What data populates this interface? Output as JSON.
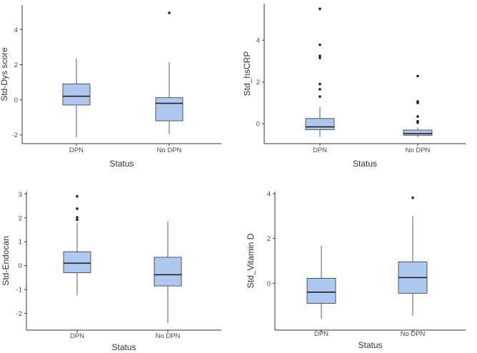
{
  "colors": {
    "box_fill": "#aec8ef",
    "box_stroke": "#333333",
    "axis": "#333333",
    "tick_text": "#4d4d4d"
  },
  "chart_data": [
    {
      "type": "box",
      "xlabel": "Status",
      "ylabel": "Std-Dys score",
      "categories": [
        "DPN",
        "No DPN"
      ],
      "ylim": [
        -2.5,
        5.4
      ],
      "yticks": [
        -2,
        0,
        2,
        4
      ],
      "ytick_labels": [
        "-2",
        "0",
        "2",
        "4"
      ],
      "boxes": [
        {
          "min": -2.15,
          "q1": -0.3,
          "median": 0.2,
          "q3": 0.9,
          "max": 2.35,
          "outliers": []
        },
        {
          "min": -1.95,
          "q1": -1.2,
          "median": -0.2,
          "q3": 0.12,
          "max": 2.15,
          "outliers": [
            4.95
          ]
        }
      ]
    },
    {
      "type": "box",
      "xlabel": "Status",
      "ylabel": "Std_hsCRP",
      "categories": [
        "DPN",
        "No DPN"
      ],
      "ylim": [
        -0.95,
        5.75
      ],
      "yticks": [
        0,
        2,
        4
      ],
      "ytick_labels": [
        "0",
        "2",
        "4"
      ],
      "boxes": [
        {
          "min": -0.62,
          "q1": -0.28,
          "median": -0.15,
          "q3": 0.25,
          "max": 0.8,
          "outliers": [
            1.3,
            1.65,
            1.9,
            3.15,
            3.25,
            3.78,
            5.5
          ]
        },
        {
          "min": -0.65,
          "q1": -0.55,
          "median": -0.47,
          "q3": -0.3,
          "max": -0.18,
          "outliers": [
            0.05,
            0.12,
            0.35,
            1.0,
            1.07,
            2.28
          ]
        }
      ]
    },
    {
      "type": "box",
      "xlabel": "Status",
      "ylabel": "Std-Endocan",
      "categories": [
        "DPN",
        "No DPN"
      ],
      "ylim": [
        -2.7,
        3.1
      ],
      "yticks": [
        -2,
        -1,
        0,
        1,
        2,
        3
      ],
      "ytick_labels": [
        "-2",
        "-1",
        "0",
        "1",
        "2",
        "3"
      ],
      "boxes": [
        {
          "min": -1.25,
          "q1": -0.3,
          "median": 0.1,
          "q3": 0.58,
          "max": 1.8,
          "outliers": [
            1.92,
            2.02,
            2.38,
            2.9
          ]
        },
        {
          "min": -2.4,
          "q1": -0.85,
          "median": -0.38,
          "q3": 0.35,
          "max": 1.85,
          "outliers": []
        }
      ]
    },
    {
      "type": "box",
      "xlabel": "Status",
      "ylabel": "Std_Vitamin D",
      "categories": [
        "DPN",
        "No DPN"
      ],
      "ylim": [
        -2.1,
        4.1
      ],
      "yticks": [
        0,
        2,
        4
      ],
      "ytick_labels": [
        "0",
        "2",
        "4"
      ],
      "boxes": [
        {
          "min": -1.6,
          "q1": -0.9,
          "median": -0.4,
          "q3": 0.22,
          "max": 1.68,
          "outliers": []
        },
        {
          "min": -1.45,
          "q1": -0.45,
          "median": 0.25,
          "q3": 0.95,
          "max": 3.0,
          "outliers": [
            3.82
          ]
        }
      ]
    }
  ]
}
